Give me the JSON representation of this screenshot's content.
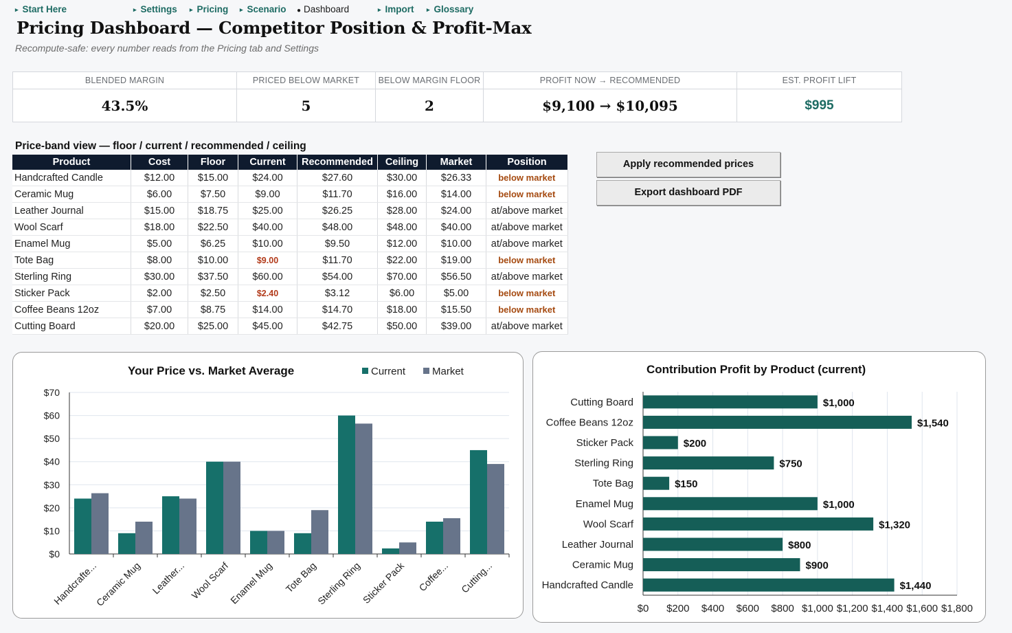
{
  "nav": [
    {
      "label": "Start Here",
      "active": false
    },
    {
      "label": "Settings",
      "active": false
    },
    {
      "label": "Pricing",
      "active": false
    },
    {
      "label": "Scenario",
      "active": false
    },
    {
      "label": "Dashboard",
      "active": true
    },
    {
      "label": "Import",
      "active": false
    },
    {
      "label": "Glossary",
      "active": false
    }
  ],
  "title": "Pricing Dashboard — Competitor Position & Profit-Max",
  "subtitle": "Recompute-safe: every number reads from the Pricing tab and Settings",
  "kpis": [
    {
      "label": "BLENDED MARGIN",
      "value": "43.5%"
    },
    {
      "label": "PRICED BELOW MARKET",
      "value": "5"
    },
    {
      "label": "BELOW MARGIN FLOOR",
      "value": "2"
    },
    {
      "label": "PROFIT NOW → RECOMMENDED",
      "value": "$9,100 → $10,095"
    },
    {
      "label": "EST. PROFIT LIFT",
      "value": "$995"
    }
  ],
  "band": {
    "title": "Price-band view — floor / current / recommended / ceiling",
    "columns": [
      "Product",
      "Cost",
      "Floor",
      "Current",
      "Recommended",
      "Ceiling",
      "Market",
      "Position"
    ],
    "rows": [
      [
        "Handcrafted Candle",
        "$12.00",
        "$15.00",
        "$24.00",
        "$27.60",
        "$30.00",
        "$26.33",
        "below market"
      ],
      [
        "Ceramic Mug",
        "$6.00",
        "$7.50",
        "$9.00",
        "$11.70",
        "$16.00",
        "$14.00",
        "below market"
      ],
      [
        "Leather Journal",
        "$15.00",
        "$18.75",
        "$25.00",
        "$26.25",
        "$28.00",
        "$24.00",
        "at/above market"
      ],
      [
        "Wool Scarf",
        "$18.00",
        "$22.50",
        "$40.00",
        "$48.00",
        "$48.00",
        "$40.00",
        "at/above market"
      ],
      [
        "Enamel Mug",
        "$5.00",
        "$6.25",
        "$10.00",
        "$9.50",
        "$12.00",
        "$10.00",
        "at/above market"
      ],
      [
        "Tote Bag",
        "$8.00",
        "$10.00",
        "$9.00",
        "$11.70",
        "$22.00",
        "$19.00",
        "below market"
      ],
      [
        "Sterling Ring",
        "$30.00",
        "$37.50",
        "$60.00",
        "$54.00",
        "$70.00",
        "$56.50",
        "at/above market"
      ],
      [
        "Sticker Pack",
        "$2.00",
        "$2.50",
        "$2.40",
        "$3.12",
        "$6.00",
        "$5.00",
        "below market"
      ],
      [
        "Coffee Beans 12oz",
        "$7.00",
        "$8.75",
        "$14.00",
        "$14.70",
        "$18.00",
        "$15.50",
        "below market"
      ],
      [
        "Cutting Board",
        "$20.00",
        "$25.00",
        "$45.00",
        "$42.75",
        "$50.00",
        "$39.00",
        "at/above market"
      ]
    ],
    "below_floor_rows": [
      5,
      7
    ]
  },
  "buttons": {
    "apply": "Apply  recommended  prices",
    "export": "Export dashboard PDF"
  },
  "colors": {
    "teal": "#16706a",
    "slate": "#67748a",
    "navy": "#0f1b2e",
    "alert": "#b23a1a",
    "bar_dark": "#155e57"
  },
  "chart_data": [
    {
      "type": "bar",
      "title": "Your Price vs. Market Average",
      "categories": [
        "Handcrafte...",
        "Ceramic Mug",
        "Leather...",
        "Wool Scarf",
        "Enamel Mug",
        "Tote Bag",
        "Sterling Ring",
        "Sticker Pack",
        "Coffee...",
        "Cutting..."
      ],
      "series": [
        {
          "name": "Current",
          "values": [
            24,
            9,
            25,
            40,
            10,
            9,
            60,
            2.4,
            14,
            45
          ]
        },
        {
          "name": "Market",
          "values": [
            26.33,
            14,
            24,
            40,
            10,
            19,
            56.5,
            5,
            15.5,
            39
          ]
        }
      ],
      "ylim": [
        0,
        70
      ],
      "yticks": [
        "$0",
        "$10",
        "$20",
        "$30",
        "$40",
        "$50",
        "$60",
        "$70"
      ],
      "legend": "top-right",
      "grid": true
    },
    {
      "type": "bar",
      "orientation": "horizontal",
      "title": "Contribution Profit by Product (current)",
      "categories": [
        "Cutting Board",
        "Coffee Beans 12oz",
        "Sticker Pack",
        "Sterling Ring",
        "Tote Bag",
        "Enamel Mug",
        "Wool Scarf",
        "Leather Journal",
        "Ceramic Mug",
        "Handcrafted Candle"
      ],
      "values": [
        1000,
        1540,
        200,
        750,
        150,
        1000,
        1320,
        800,
        900,
        1440
      ],
      "value_labels": [
        "$1,000",
        "$1,540",
        "$200",
        "$750",
        "$150",
        "$1,000",
        "$1,320",
        "$800",
        "$900",
        "$1,440"
      ],
      "xlim": [
        0,
        1800
      ],
      "xticks": [
        "$0",
        "$200",
        "$400",
        "$600",
        "$800",
        "$1,000",
        "$1,200",
        "$1,400",
        "$1,600",
        "$1,800"
      ],
      "grid": true
    }
  ]
}
